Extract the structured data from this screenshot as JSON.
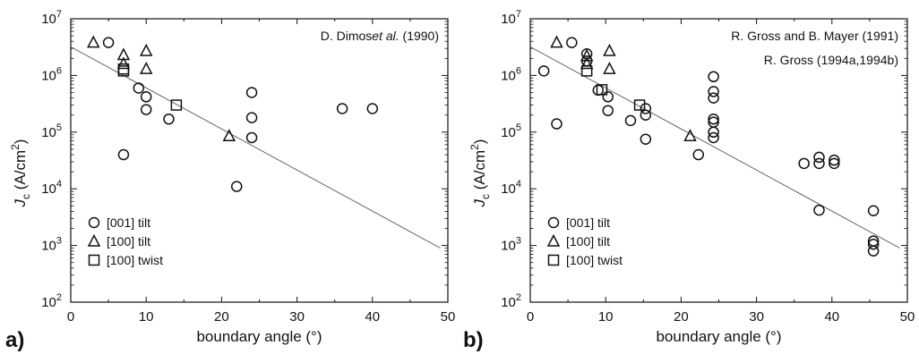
{
  "chart_data": [
    {
      "type": "scatter",
      "panel_label": "a)",
      "annotations": [
        {
          "text": "D. Dimos",
          "italic": "et al.",
          "after": " (1990)"
        }
      ],
      "xlabel": "boundary angle (°)",
      "ylabel": {
        "main": "J",
        "sub": "c",
        "unit": " (A/cm",
        "sup": "2",
        "close": ")"
      },
      "xlim": [
        0,
        50
      ],
      "ylim_log10": [
        2,
        7
      ],
      "x_ticks": [
        "0",
        "10",
        "20",
        "30",
        "40",
        "50"
      ],
      "y_ticks": [
        {
          "base": "10",
          "exp": "2"
        },
        {
          "base": "10",
          "exp": "3"
        },
        {
          "base": "10",
          "exp": "4"
        },
        {
          "base": "10",
          "exp": "5"
        },
        {
          "base": "10",
          "exp": "6"
        },
        {
          "base": "10",
          "exp": "7"
        }
      ],
      "legend": {
        "placement": "bottom-left",
        "entries": [
          {
            "marker": "circle",
            "label": "[001] tilt"
          },
          {
            "marker": "triangle",
            "label": "[100] tilt"
          },
          {
            "marker": "square",
            "label": "[100] twist"
          }
        ]
      },
      "series": [
        {
          "marker": "circle",
          "points": [
            [
              5,
              3800000
            ],
            [
              7,
              40000
            ],
            [
              9,
              600000
            ],
            [
              10,
              420000
            ],
            [
              10,
              250000
            ],
            [
              13,
              170000
            ],
            [
              22,
              11000
            ],
            [
              24,
              500000
            ],
            [
              24,
              180000
            ],
            [
              24,
              80000
            ],
            [
              36,
              260000
            ],
            [
              40,
              260000
            ]
          ]
        },
        {
          "marker": "triangle",
          "points": [
            [
              3,
              3800000
            ],
            [
              7,
              2300000
            ],
            [
              7,
              1600000
            ],
            [
              10,
              2700000
            ],
            [
              10,
              1300000
            ],
            [
              21,
              85000
            ]
          ]
        },
        {
          "marker": "square",
          "points": [
            [
              7,
              1300000
            ],
            [
              7,
              1200000
            ],
            [
              14,
              300000
            ]
          ]
        }
      ],
      "fit_line": [
        [
          0,
          3200000
        ],
        [
          49,
          900
        ]
      ]
    },
    {
      "type": "scatter",
      "panel_label": "b)",
      "annotations": [
        {
          "text": "R. Gross and B. Mayer (1991)"
        },
        {
          "text": "R. Gross (1994a,1994b)"
        }
      ],
      "xlabel": "boundary angle (°)",
      "ylabel": {
        "main": "J",
        "sub": "c",
        "unit": " (A/cm",
        "sup": "2",
        "close": ")"
      },
      "xlim": [
        0,
        50
      ],
      "ylim_log10": [
        2,
        7
      ],
      "x_ticks": [
        "0",
        "10",
        "20",
        "30",
        "40",
        "50"
      ],
      "y_ticks": [
        {
          "base": "10",
          "exp": "2"
        },
        {
          "base": "10",
          "exp": "3"
        },
        {
          "base": "10",
          "exp": "4"
        },
        {
          "base": "10",
          "exp": "5"
        },
        {
          "base": "10",
          "exp": "6"
        },
        {
          "base": "10",
          "exp": "7"
        }
      ],
      "legend": {
        "placement": "bottom-left",
        "entries": [
          {
            "marker": "circle",
            "label": "[001] tilt"
          },
          {
            "marker": "triangle",
            "label": "[100] tilt"
          },
          {
            "marker": "square",
            "label": "[100] twist"
          }
        ]
      },
      "series": [
        {
          "marker": "circle",
          "points": [
            [
              1.8,
              1200000
            ],
            [
              3.5,
              140000
            ],
            [
              5.5,
              3800000
            ],
            [
              7.5,
              2400000
            ],
            [
              7.5,
              1800000
            ],
            [
              9,
              550000
            ],
            [
              10.3,
              420000
            ],
            [
              10.3,
              240000
            ],
            [
              13.3,
              160000
            ],
            [
              15.3,
              260000
            ],
            [
              15.3,
              200000
            ],
            [
              15.3,
              75000
            ],
            [
              22.3,
              40000
            ],
            [
              24.3,
              950000
            ],
            [
              24.3,
              520000
            ],
            [
              24.3,
              400000
            ],
            [
              24.3,
              170000
            ],
            [
              24.3,
              150000
            ],
            [
              24.3,
              100000
            ],
            [
              24.3,
              80000
            ],
            [
              36.3,
              28000
            ],
            [
              38.3,
              36000
            ],
            [
              38.3,
              28000
            ],
            [
              38.3,
              4200
            ],
            [
              40.3,
              32000
            ],
            [
              40.3,
              28000
            ],
            [
              45.5,
              4100
            ],
            [
              45.5,
              1200
            ],
            [
              45.5,
              1050
            ],
            [
              45.5,
              800
            ]
          ]
        },
        {
          "marker": "triangle",
          "points": [
            [
              3.5,
              3800000
            ],
            [
              7.5,
              2200000
            ],
            [
              7.5,
              1600000
            ],
            [
              10.5,
              2700000
            ],
            [
              10.5,
              1300000
            ],
            [
              21.2,
              85000
            ]
          ]
        },
        {
          "marker": "square",
          "points": [
            [
              7.5,
              1200000
            ],
            [
              9.5,
              560000
            ],
            [
              14.5,
              300000
            ]
          ]
        }
      ],
      "fit_line": [
        [
          0,
          3200000
        ],
        [
          49,
          900
        ]
      ]
    }
  ]
}
